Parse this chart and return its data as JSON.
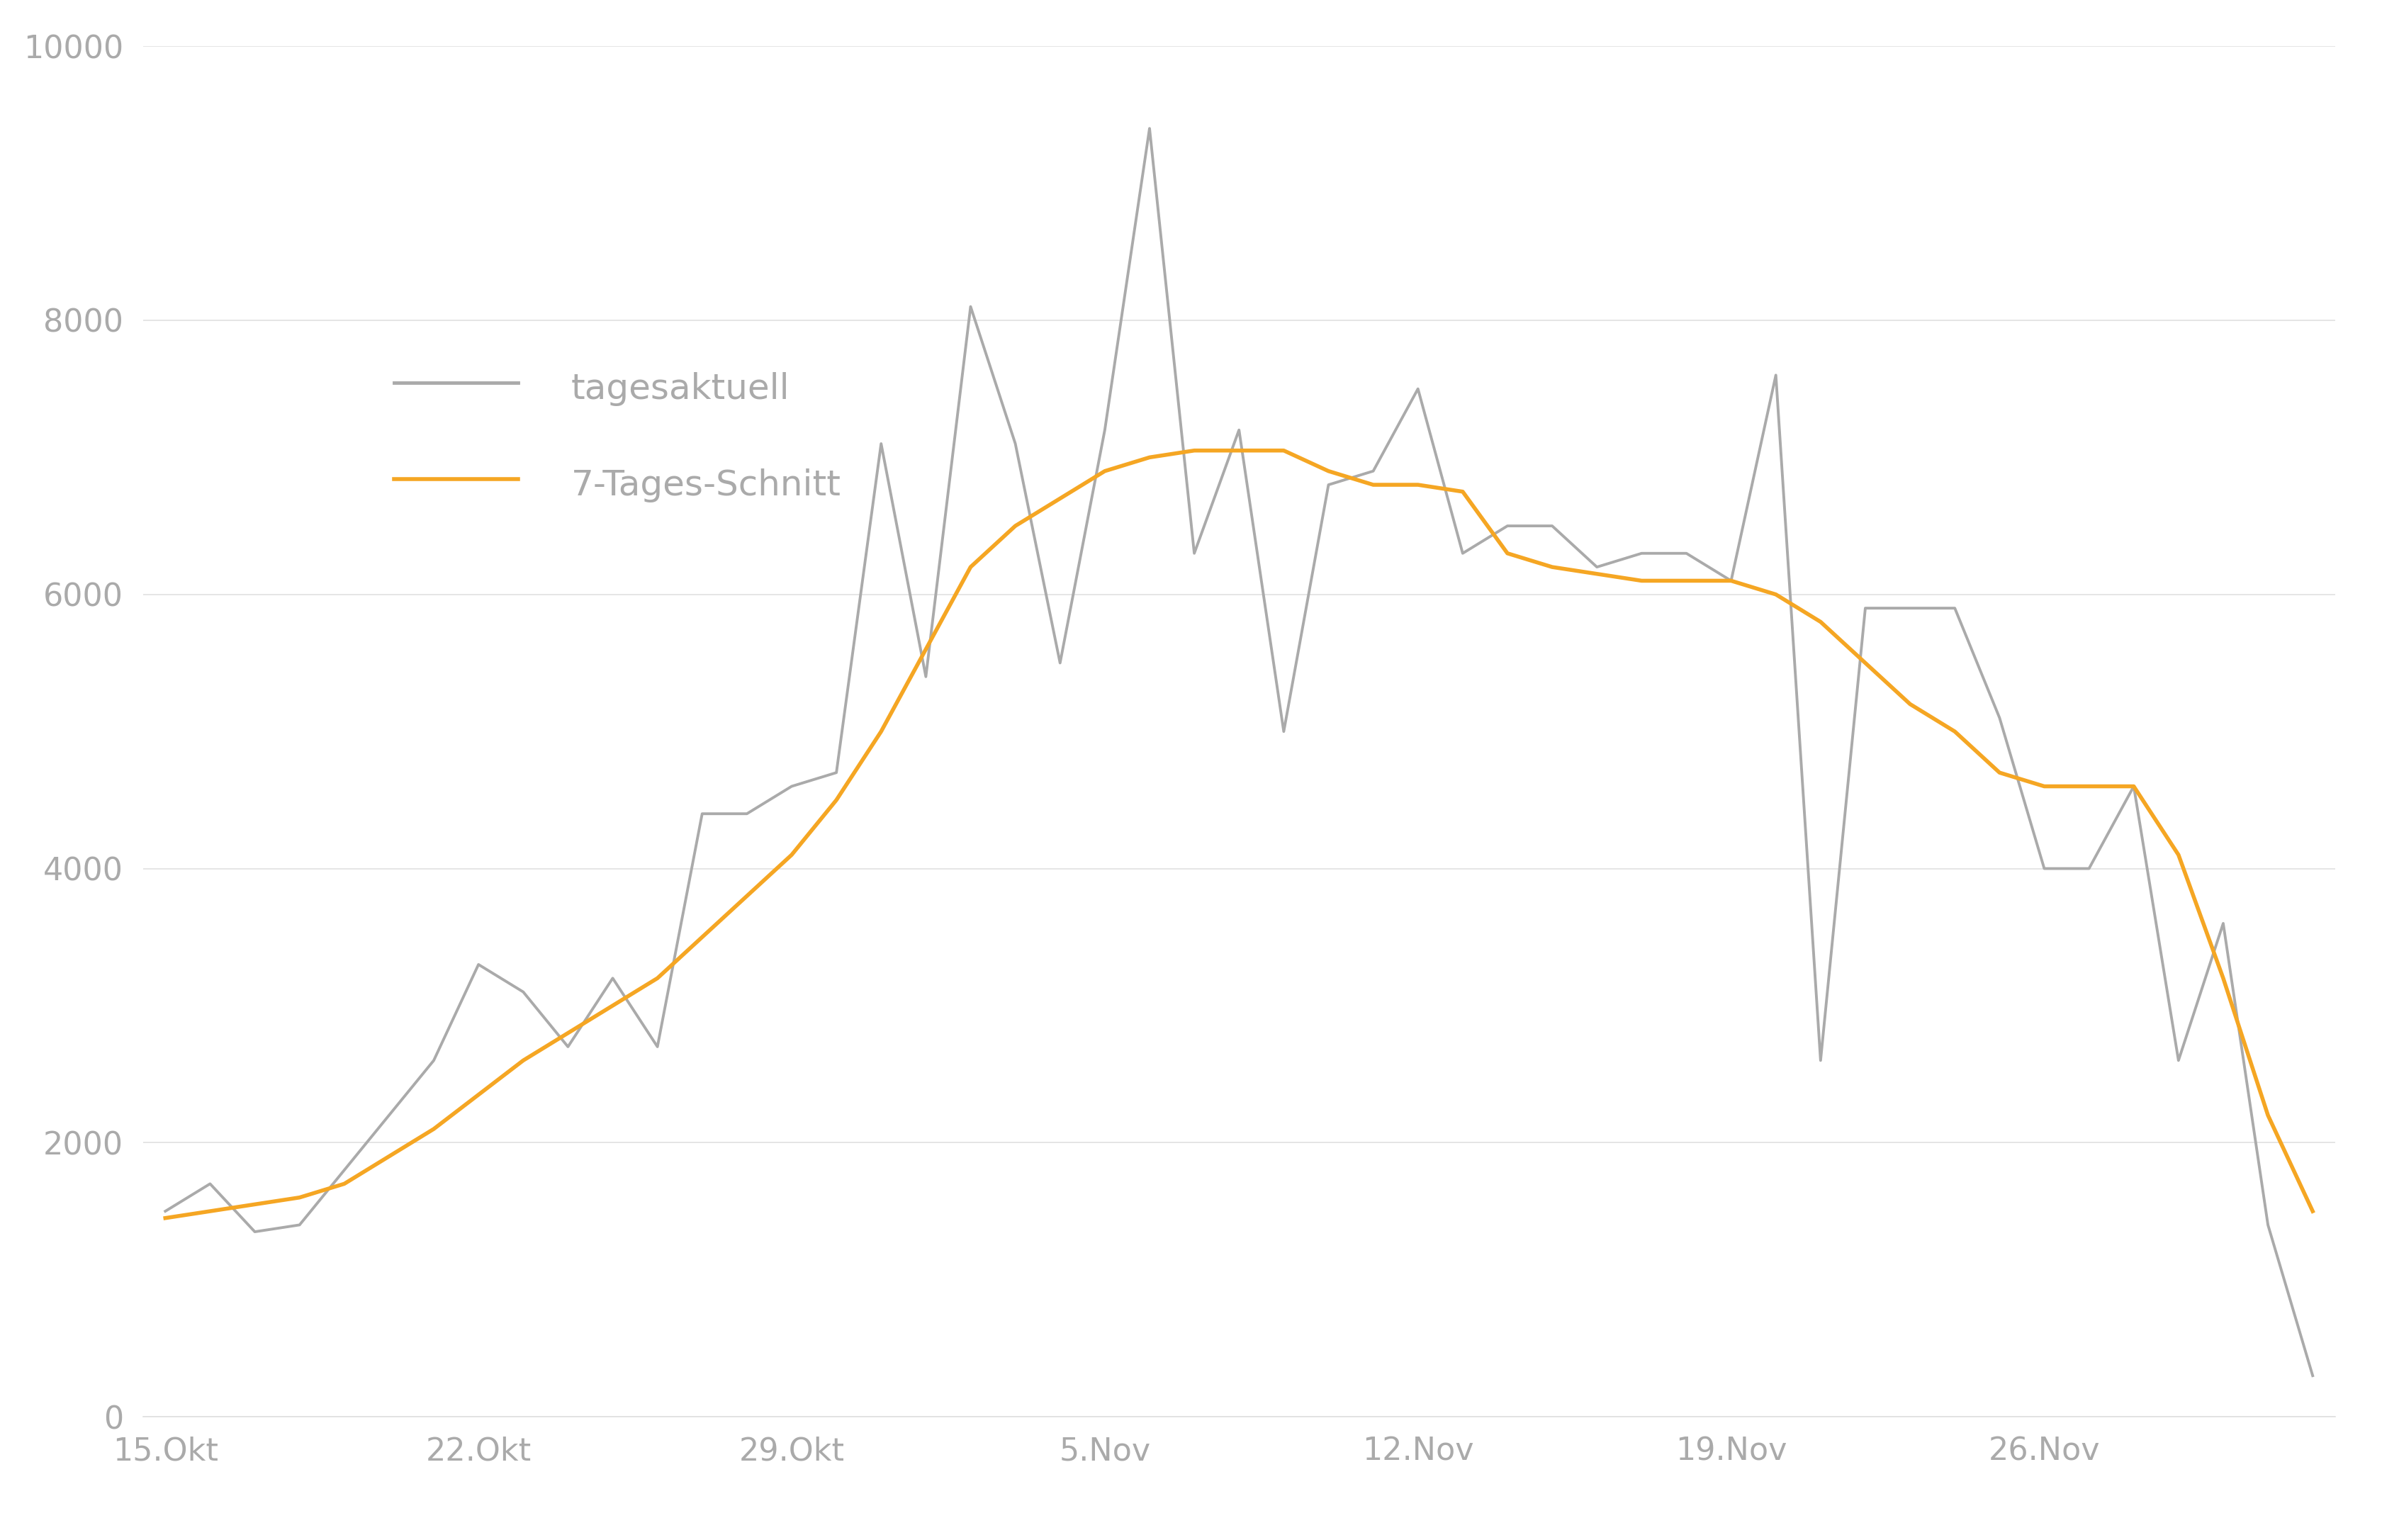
{
  "dates_labels": [
    "15.Okt",
    "22.Okt",
    "29.Okt",
    "5.Nov",
    "12.Nov",
    "19.Nov",
    "26.Nov"
  ],
  "date_indices": [
    0,
    7,
    14,
    21,
    28,
    35,
    42
  ],
  "daily_values": [
    1500,
    1700,
    1350,
    1400,
    1800,
    2200,
    2600,
    3300,
    3100,
    2700,
    3200,
    2700,
    4400,
    4400,
    4600,
    4700,
    7100,
    5400,
    8100,
    7100,
    5500,
    7200,
    9400,
    6300,
    7200,
    5000,
    6800,
    6900,
    7500,
    6300,
    6500,
    6500,
    6200,
    6300,
    6300,
    6100,
    7600,
    2600,
    5900,
    5900,
    5900,
    5100,
    4000,
    4000,
    4600,
    2600,
    3600,
    1400,
    300
  ],
  "avg_values": [
    1450,
    1500,
    1550,
    1600,
    1700,
    1900,
    2100,
    2350,
    2600,
    2800,
    3000,
    3200,
    3500,
    3800,
    4100,
    4500,
    5000,
    5600,
    6200,
    6500,
    6700,
    6900,
    7000,
    7050,
    7050,
    7050,
    6900,
    6800,
    6800,
    6750,
    6300,
    6200,
    6150,
    6100,
    6100,
    6100,
    6000,
    5800,
    5500,
    5200,
    5000,
    4700,
    4600,
    4600,
    4600,
    4100,
    3200,
    2200,
    1500
  ],
  "grey_color": "#aaaaaa",
  "orange_color": "#f5a623",
  "background_color": "#ffffff",
  "grid_color": "#e0e0e0",
  "tick_color": "#aaaaaa",
  "legend_label_daily": "tagesaktuell",
  "legend_label_avg": "7-Tages-Schnitt",
  "ylim": [
    0,
    10000
  ],
  "yticks": [
    0,
    2000,
    4000,
    6000,
    8000,
    10000
  ]
}
